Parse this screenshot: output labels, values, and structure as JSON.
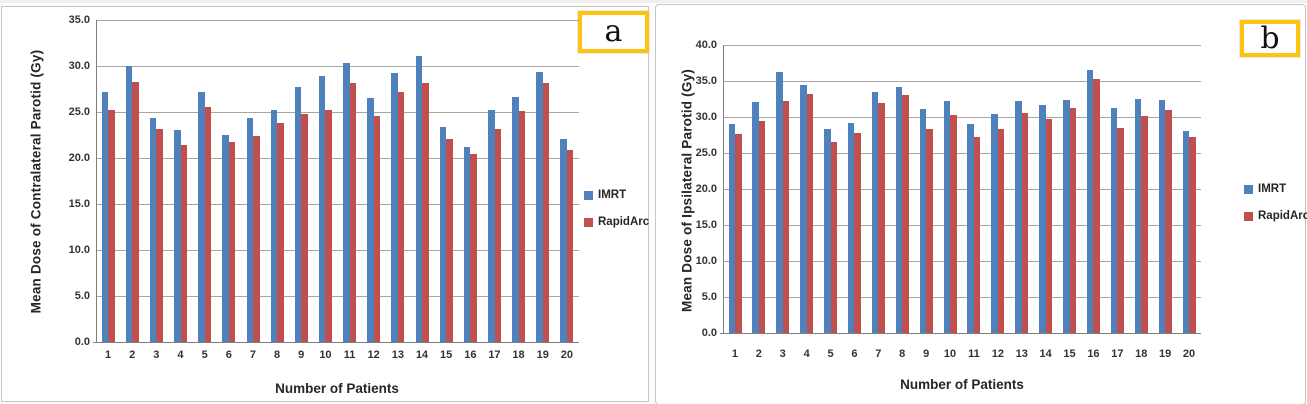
{
  "chart_data": [
    {
      "type": "bar",
      "panel_label": "a",
      "title": "",
      "xlabel": "Number of Patients",
      "ylabel": "Mean Dose of Contralateral Parotid (Gy)",
      "ylim": [
        0,
        35
      ],
      "ytick_step": 5,
      "grid": true,
      "legend_position": "right",
      "categories": [
        "1",
        "2",
        "3",
        "4",
        "5",
        "6",
        "7",
        "8",
        "9",
        "10",
        "11",
        "12",
        "13",
        "14",
        "15",
        "16",
        "17",
        "18",
        "19",
        "20"
      ],
      "series": [
        {
          "name": "IMRT",
          "color": "#4F81BD",
          "values": [
            27.2,
            30.0,
            24.3,
            23.1,
            27.2,
            22.5,
            24.4,
            25.2,
            27.7,
            28.9,
            30.3,
            26.5,
            29.2,
            31.1,
            23.4,
            21.2,
            25.2,
            26.6,
            29.3,
            22.1
          ]
        },
        {
          "name": "RapidArc",
          "color": "#C0504D",
          "values": [
            25.2,
            28.3,
            23.2,
            21.4,
            25.5,
            21.7,
            22.4,
            23.8,
            24.8,
            25.2,
            28.2,
            24.6,
            27.2,
            28.2,
            22.1,
            20.4,
            23.2,
            25.1,
            28.2,
            20.9
          ]
        }
      ]
    },
    {
      "type": "bar",
      "panel_label": "b",
      "title": "",
      "xlabel": "Number of Patients",
      "ylabel": "Mean Dose of Ipsilateral Parotid (Gy)",
      "ylim": [
        0,
        40
      ],
      "ytick_step": 5,
      "grid": true,
      "legend_position": "right",
      "categories": [
        "1",
        "2",
        "3",
        "4",
        "5",
        "6",
        "7",
        "8",
        "9",
        "10",
        "11",
        "12",
        "13",
        "14",
        "15",
        "16",
        "17",
        "18",
        "19",
        "20"
      ],
      "series": [
        {
          "name": "IMRT",
          "color": "#4F81BD",
          "values": [
            29.1,
            32.1,
            36.3,
            34.5,
            28.3,
            29.2,
            33.5,
            34.2,
            31.1,
            32.2,
            29.1,
            30.4,
            32.2,
            31.7,
            32.4,
            36.5,
            31.2,
            32.5,
            32.4,
            28.1
          ]
        },
        {
          "name": "RapidArc",
          "color": "#C0504D",
          "values": [
            27.6,
            29.5,
            32.2,
            33.2,
            26.5,
            27.8,
            32.0,
            33.1,
            28.3,
            30.3,
            27.2,
            28.4,
            30.6,
            29.7,
            31.2,
            35.3,
            28.5,
            30.1,
            31.0,
            27.2
          ]
        }
      ]
    }
  ],
  "colors": {
    "imrt_blue": "#4F81BD",
    "rapidarc_red": "#C0504D",
    "gridline_gray": "#A6A6A6",
    "panel_label_border_gold": "#FEC40D"
  }
}
